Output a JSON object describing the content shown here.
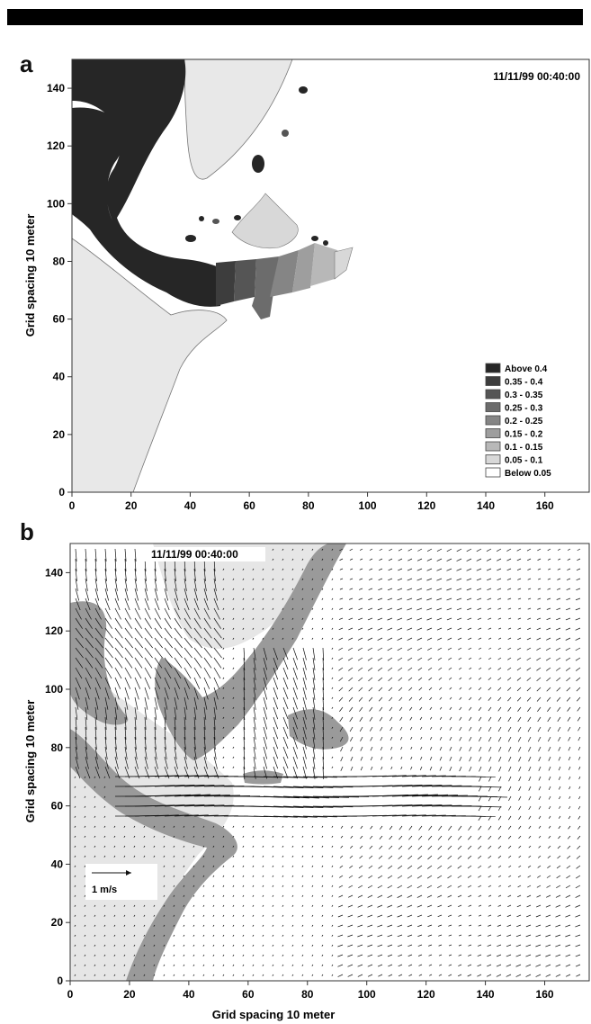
{
  "chart_data": [
    {
      "panel": "a",
      "type": "heatmap",
      "timestamp": "11/11/99 00:40:00",
      "xlabel": "",
      "ylabel": "Grid spacing 10 meter",
      "xlim": [
        0,
        175
      ],
      "ylim": [
        0,
        150
      ],
      "xticks": [
        0,
        20,
        40,
        60,
        80,
        100,
        120,
        140,
        160
      ],
      "yticks": [
        0,
        20,
        40,
        60,
        80,
        100,
        120,
        140
      ],
      "legend": {
        "placement": "bottom-right",
        "entries": [
          {
            "label": "Above  0.4",
            "color": "#262626"
          },
          {
            "label": "0.35  -  0.4",
            "color": "#3d3d3d"
          },
          {
            "label": "0.3  -  0.35",
            "color": "#555555"
          },
          {
            "label": "0.25  -  0.3",
            "color": "#6c6c6c"
          },
          {
            "label": "0.2  -  0.25",
            "color": "#858585"
          },
          {
            "label": "0.15  -  0.2",
            "color": "#9e9e9e"
          },
          {
            "label": "0.1  -  0.15",
            "color": "#b8b8b8"
          },
          {
            "label": "0.05  -  0.1",
            "color": "#d8d8d8"
          },
          {
            "label": "Below  0.05",
            "color": "#ffffff"
          }
        ]
      }
    },
    {
      "panel": "b",
      "type": "scatter",
      "timestamp": "11/11/99 00:40:00",
      "xlabel": "Grid spacing 10 meter",
      "ylabel": "Grid spacing 10 meter",
      "xlim": [
        0,
        175
      ],
      "ylim": [
        0,
        150
      ],
      "xticks": [
        0,
        20,
        40,
        60,
        80,
        100,
        120,
        140,
        160
      ],
      "yticks": [
        0,
        20,
        40,
        60,
        80,
        100,
        120,
        140
      ],
      "scale_label": "1 m/s",
      "land_color": "#9a9a9a",
      "sea_color": "#ffffff",
      "shore_color": "#e6e6e6"
    }
  ]
}
